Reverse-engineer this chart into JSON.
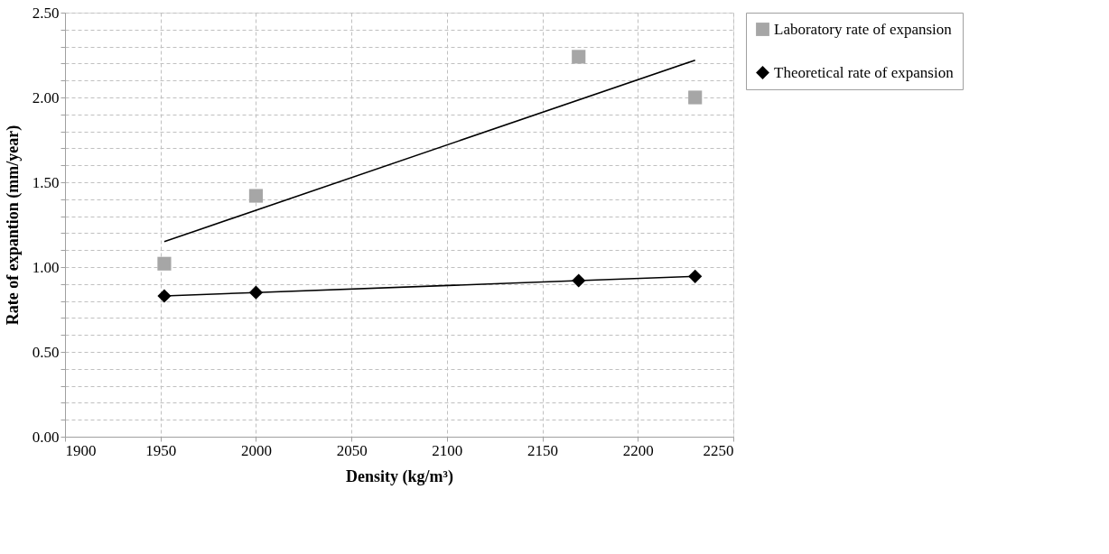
{
  "chart_data": {
    "type": "scatter",
    "xlabel": "Density (kg/m³)",
    "ylabel": "Rate of expantion (mm/year)",
    "xlim": [
      1900,
      2250
    ],
    "xticks": [
      1900,
      1950,
      2000,
      2050,
      2100,
      2150,
      2200,
      2250
    ],
    "ylim": [
      0,
      2.5
    ],
    "yticks": [
      {
        "value": 0,
        "label": "0.00"
      },
      {
        "value": 0.1,
        "label": null
      },
      {
        "value": 0.2,
        "label": null
      },
      {
        "value": 0.3,
        "label": null
      },
      {
        "value": 0.4,
        "label": null
      },
      {
        "value": 0.5,
        "label": "0.50"
      },
      {
        "value": 0.6,
        "label": null
      },
      {
        "value": 0.7,
        "label": null
      },
      {
        "value": 0.8,
        "label": null
      },
      {
        "value": 0.9,
        "label": null
      },
      {
        "value": 1.0,
        "label": "1.00"
      },
      {
        "value": 1.1,
        "label": null
      },
      {
        "value": 1.2,
        "label": null
      },
      {
        "value": 1.3,
        "label": null
      },
      {
        "value": 1.4,
        "label": null
      },
      {
        "value": 1.5,
        "label": "1.50"
      },
      {
        "value": 1.6,
        "label": null
      },
      {
        "value": 1.7,
        "label": null
      },
      {
        "value": 1.8,
        "label": null
      },
      {
        "value": 1.9,
        "label": null
      },
      {
        "value": 2.0,
        "label": "2.00"
      },
      {
        "value": 2.1,
        "label": null
      },
      {
        "value": 2.2,
        "label": null
      },
      {
        "value": 2.3,
        "label": null
      },
      {
        "value": 2.4,
        "label": null
      },
      {
        "value": 2.5,
        "label": "2.50"
      }
    ],
    "grid": true,
    "legend": "right",
    "series": [
      {
        "name": "Laboratory rate of expansion",
        "type": "scatter",
        "marker": "square",
        "color": "#a6a6a6",
        "x": [
          1952,
          2000,
          2169,
          2230
        ],
        "values": [
          1.02,
          1.42,
          2.24,
          2.0
        ]
      },
      {
        "type": "line",
        "marker": "none",
        "color": "#000000",
        "x": [
          1952,
          2230
        ],
        "values": [
          1.15,
          2.22
        ]
      },
      {
        "name": "Theoretical rate of expansion",
        "type": "line",
        "marker": "diamond",
        "color": "#000000",
        "x": [
          1952,
          2000,
          2169,
          2230
        ],
        "values": [
          0.83,
          0.85,
          0.92,
          0.945
        ]
      }
    ]
  }
}
